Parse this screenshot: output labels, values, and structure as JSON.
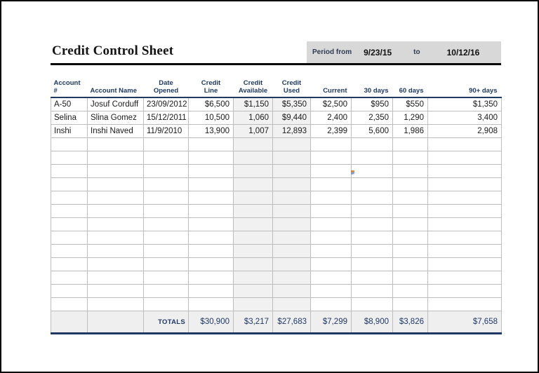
{
  "sheet": {
    "title": "Credit Control Sheet",
    "period": {
      "label": "Period from",
      "from": "9/23/15",
      "to_label": "to",
      "to": "10/12/16"
    }
  },
  "table": {
    "headers": [
      "Account #",
      "Account Name",
      "Date\nOpened",
      "Credit\nLine",
      "Credit\nAvailable",
      "Credit\nUsed",
      "Current",
      "30 days",
      "60 days",
      "90+ days"
    ],
    "rows": [
      [
        "A-50",
        "Josuf Corduff",
        "23/09/2012",
        "$6,500",
        "$1,150",
        "$5,350",
        "$2,500",
        "$950",
        "$550",
        "$1,350"
      ],
      [
        "Selina",
        "Slina Gomez",
        "15/12/2011",
        "10,500",
        "1,060",
        "$9,440",
        "2,400",
        "2,350",
        "1,290",
        "3,400"
      ],
      [
        "Inshi",
        "Inshi Naved",
        "11/9/2010",
        "13,900",
        "1,007",
        "12,893",
        "2,399",
        "5,600",
        "1,986",
        "2,908"
      ]
    ],
    "empty_rows": 13,
    "totals_label": "TOTALS",
    "totals": [
      "$30,900",
      "$3,217",
      "$27,683",
      "$7,299",
      "$8,900",
      "$3,826",
      "$7,658"
    ]
  },
  "colors": {
    "accent_navy": "#1F3864",
    "header_rule_navy": "#203864",
    "grid": "#BDBDBD",
    "shaded_column": "#F1F1F1",
    "totals_bg": "#EFEFEF",
    "period_bg": "#D8D8D8",
    "title_rule": "#050505"
  }
}
